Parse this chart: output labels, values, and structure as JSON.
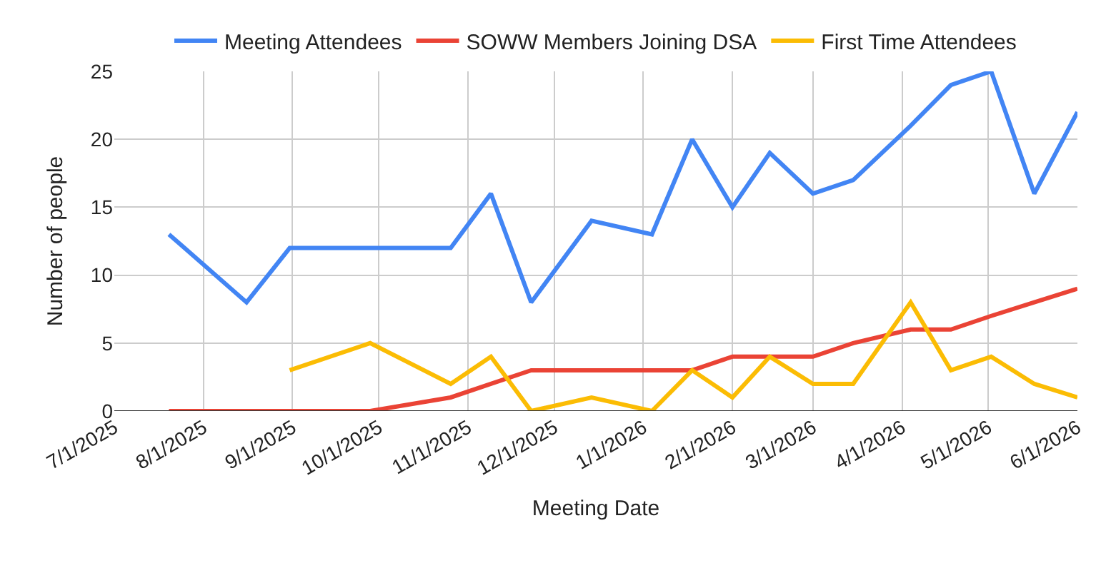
{
  "chart_data": {
    "type": "line",
    "xlabel": "Meeting Date",
    "ylabel": "Number of people",
    "x": [
      "2025-07-20",
      "2025-08-16",
      "2025-08-31",
      "2025-09-28",
      "2025-10-26",
      "2025-11-09",
      "2025-11-23",
      "2025-12-14",
      "2026-01-04",
      "2026-01-18",
      "2026-02-01",
      "2026-02-14",
      "2026-03-01",
      "2026-03-15",
      "2026-04-04",
      "2026-04-18",
      "2026-05-02",
      "2026-05-17",
      "2026-06-01"
    ],
    "series": [
      {
        "name": "Meeting Attendees",
        "color": "#4285f4",
        "values": [
          13,
          8,
          12,
          12,
          12,
          16,
          8,
          14,
          13,
          20,
          15,
          19,
          16,
          17,
          21,
          24,
          25,
          16,
          22
        ]
      },
      {
        "name": "SOWW Members Joining DSA",
        "color": "#ea4335",
        "values": [
          0,
          0,
          0,
          0,
          1,
          2,
          3,
          3,
          3,
          3,
          4,
          4,
          4,
          5,
          6,
          6,
          7,
          8,
          9
        ]
      },
      {
        "name": "First Time Attendees",
        "color": "#fbbc04",
        "values": [
          null,
          null,
          3,
          5,
          2,
          4,
          0,
          1,
          0,
          3,
          1,
          4,
          2,
          2,
          8,
          3,
          4,
          2,
          1
        ]
      }
    ],
    "xlim": [
      "2025-07-01",
      "2026-06-01"
    ],
    "xticks": [
      {
        "value": "2025-07-01",
        "label": "7/1/2025"
      },
      {
        "value": "2025-08-01",
        "label": "8/1/2025"
      },
      {
        "value": "2025-09-01",
        "label": "9/1/2025"
      },
      {
        "value": "2025-10-01",
        "label": "10/1/2025"
      },
      {
        "value": "2025-11-01",
        "label": "11/1/2025"
      },
      {
        "value": "2025-12-01",
        "label": "12/1/2025"
      },
      {
        "value": "2026-01-01",
        "label": "1/1/2026"
      },
      {
        "value": "2026-02-01",
        "label": "2/1/2026"
      },
      {
        "value": "2026-03-01",
        "label": "3/1/2026"
      },
      {
        "value": "2026-04-01",
        "label": "4/1/2026"
      },
      {
        "value": "2026-05-01",
        "label": "5/1/2026"
      },
      {
        "value": "2026-06-01",
        "label": "6/1/2026"
      }
    ],
    "ylim": [
      0,
      25
    ],
    "yticks": [
      0,
      5,
      10,
      15,
      20,
      25
    ],
    "grid": true,
    "legend": "top",
    "marker": "none",
    "line_style": "solid"
  }
}
